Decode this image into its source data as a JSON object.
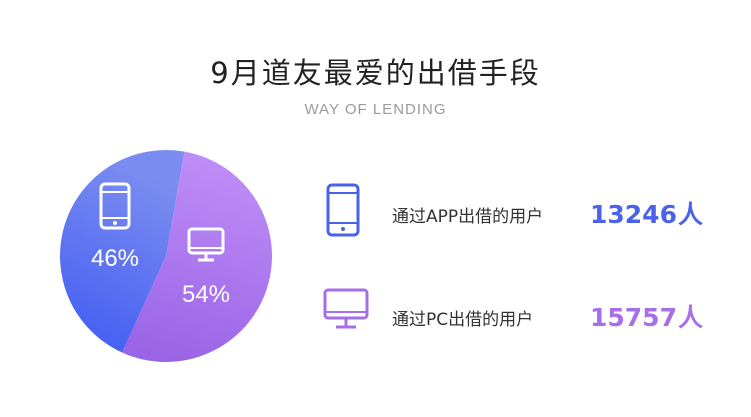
{
  "header": {
    "title": "9月道友最爱的出借手段",
    "subtitle": "WAY OF LENDING"
  },
  "icons": {
    "app": "mobile-phone-icon",
    "pc": "desktop-monitor-icon"
  },
  "colors": {
    "app": "#4a62ea",
    "pc": "#a66ee8",
    "app_gradient": [
      "#3f5bf2",
      "#7b8cf0"
    ],
    "pc_gradient": [
      "#c08ef7",
      "#9e66e6"
    ]
  },
  "legend": {
    "app": {
      "label": "通过APP出借的用户",
      "value": "13246",
      "unit": "人"
    },
    "pc": {
      "label": "通过PC出借的用户",
      "value": "15757",
      "unit": "人"
    }
  },
  "chart_data": {
    "type": "pie",
    "slices": [
      {
        "key": "app",
        "label": "46%",
        "value": 46
      },
      {
        "key": "pc",
        "label": "54%",
        "value": 54
      }
    ]
  }
}
